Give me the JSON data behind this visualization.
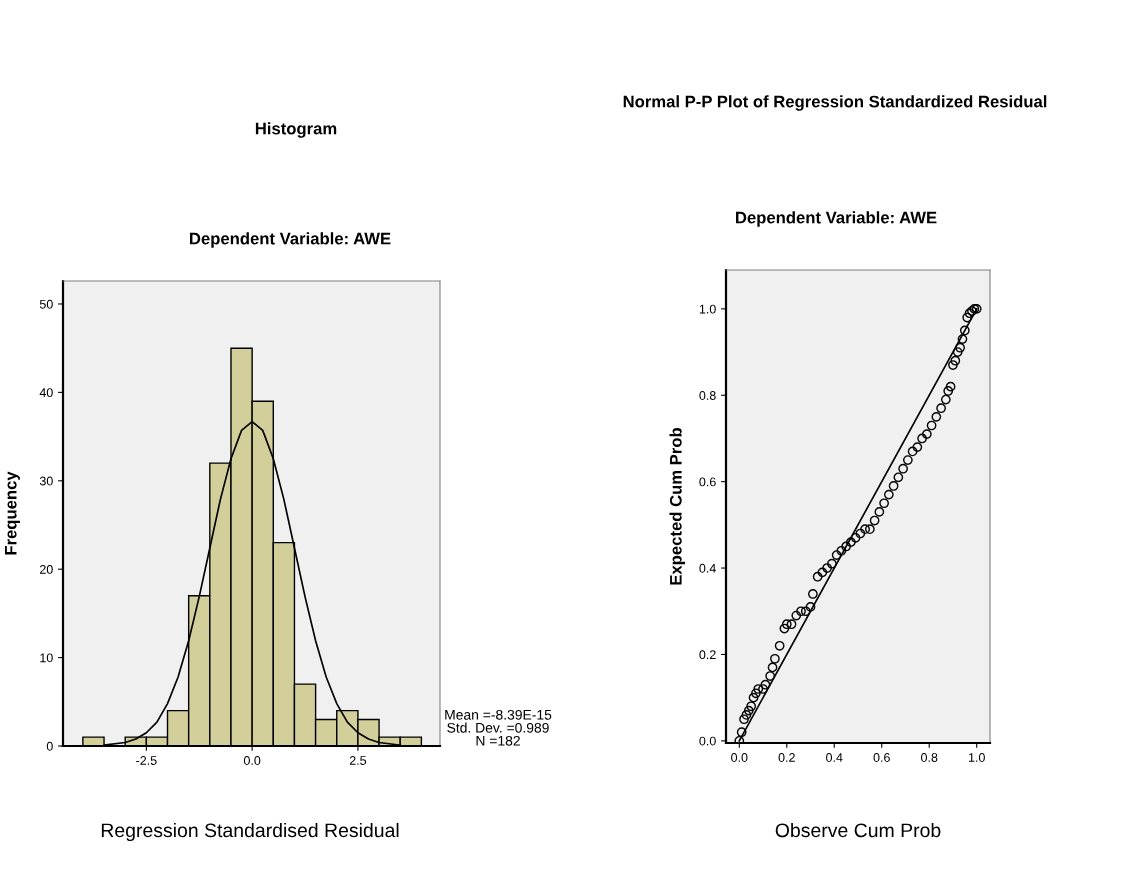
{
  "chart_data": [
    {
      "type": "histogram",
      "title": "Histogram",
      "subtitle": "Dependent Variable: AWE",
      "xlabel": "Regression Standardised Residual",
      "ylabel": "Frequency",
      "bins": [
        -4.0,
        -3.5,
        -3.0,
        -2.5,
        -2.0,
        -1.5,
        -1.0,
        -0.5,
        0.0,
        0.5,
        1.0,
        1.5,
        2.0,
        2.5,
        3.0,
        3.5,
        4.0
      ],
      "series": [
        {
          "color": "#d3cf9a",
          "values": [
            1,
            0,
            1,
            1,
            4,
            17,
            32,
            45,
            39,
            23,
            7,
            3,
            4,
            3,
            1,
            1
          ]
        },
        {
          "type": "line",
          "color": "#000000",
          "x": [
            -3.5,
            -3.0,
            -2.75,
            -2.5,
            -2.25,
            -2.0,
            -1.75,
            -1.5,
            -1.25,
            -1.0,
            -0.75,
            -0.5,
            -0.25,
            0.0,
            0.25,
            0.5,
            0.75,
            1.0,
            1.25,
            1.5,
            1.75,
            2.0,
            2.25,
            2.5,
            2.75,
            3.0,
            3.5
          ],
          "values": [
            0.1,
            0.4,
            0.8,
            1.5,
            2.7,
            4.8,
            7.8,
            11.9,
            16.9,
            22.4,
            27.9,
            32.5,
            35.7,
            36.7,
            35.7,
            32.5,
            27.9,
            22.4,
            16.9,
            11.9,
            7.8,
            4.8,
            2.7,
            1.5,
            0.8,
            0.4,
            0.1
          ]
        }
      ],
      "xlim": [
        -4.47,
        4.44
      ],
      "ylim": [
        0,
        52.6
      ],
      "xticks": [
        {
          "value": -2.5,
          "label": "-2.5"
        },
        {
          "value": 0,
          "label": "0.0"
        },
        {
          "value": 2.5,
          "label": "2.5"
        }
      ],
      "yticks": [
        0,
        10,
        20,
        30,
        40,
        50
      ],
      "annotations": [
        "Mean =-8.39E-15",
        "Std. Dev. =0.989",
        "N =182"
      ],
      "grid": false
    },
    {
      "type": "scatter",
      "title": "Normal P-P Plot of Regression Standardized Residual",
      "subtitle": "Dependent Variable: AWE",
      "xlabel": "Observe Cum Prob",
      "ylabel": "Expected Cum Prob",
      "marker": "circle",
      "series": [
        {
          "color": "#000000",
          "x": [
            0.0,
            0.01,
            0.02,
            0.03,
            0.04,
            0.05,
            0.06,
            0.07,
            0.08,
            0.1,
            0.11,
            0.13,
            0.14,
            0.15,
            0.17,
            0.19,
            0.2,
            0.22,
            0.24,
            0.26,
            0.28,
            0.3,
            0.31,
            0.33,
            0.35,
            0.37,
            0.39,
            0.41,
            0.43,
            0.45,
            0.47,
            0.49,
            0.51,
            0.53,
            0.55,
            0.57,
            0.59,
            0.61,
            0.63,
            0.65,
            0.67,
            0.69,
            0.71,
            0.73,
            0.75,
            0.77,
            0.79,
            0.81,
            0.83,
            0.85,
            0.87,
            0.88,
            0.89,
            0.9,
            0.91,
            0.92,
            0.93,
            0.94,
            0.95,
            0.96,
            0.97,
            0.98,
            0.99,
            1.0
          ],
          "values": [
            0.0,
            0.02,
            0.05,
            0.06,
            0.07,
            0.08,
            0.1,
            0.11,
            0.12,
            0.12,
            0.13,
            0.15,
            0.17,
            0.19,
            0.22,
            0.26,
            0.27,
            0.27,
            0.29,
            0.3,
            0.3,
            0.31,
            0.34,
            0.38,
            0.39,
            0.4,
            0.41,
            0.43,
            0.44,
            0.45,
            0.46,
            0.47,
            0.48,
            0.49,
            0.49,
            0.51,
            0.53,
            0.55,
            0.57,
            0.59,
            0.61,
            0.63,
            0.65,
            0.67,
            0.68,
            0.7,
            0.71,
            0.73,
            0.75,
            0.77,
            0.79,
            0.81,
            0.82,
            0.87,
            0.88,
            0.9,
            0.91,
            0.93,
            0.95,
            0.98,
            0.99,
            0.995,
            1.0,
            1.0
          ]
        },
        {
          "type": "line",
          "color": "#000000",
          "marker": "none",
          "x": [
            0,
            1
          ],
          "values": [
            0,
            1
          ]
        }
      ],
      "xlim": [
        -0.056,
        1.056
      ],
      "ylim": [
        -0.005,
        1.09
      ],
      "xticks": [
        {
          "value": 0,
          "label": "0.0"
        },
        {
          "value": 0.2,
          "label": "0.2"
        },
        {
          "value": 0.4,
          "label": "0.4"
        },
        {
          "value": 0.6,
          "label": "0.6"
        },
        {
          "value": 0.8,
          "label": "0.8"
        },
        {
          "value": 1.0,
          "label": "1.0"
        }
      ],
      "yticks": [
        {
          "value": 0,
          "label": "0.0"
        },
        {
          "value": 0.2,
          "label": "0.2"
        },
        {
          "value": 0.4,
          "label": "0.4"
        },
        {
          "value": 0.6,
          "label": "0.6"
        },
        {
          "value": 0.8,
          "label": "0.8"
        },
        {
          "value": 1.0,
          "label": "1.0"
        }
      ],
      "grid": false
    }
  ]
}
